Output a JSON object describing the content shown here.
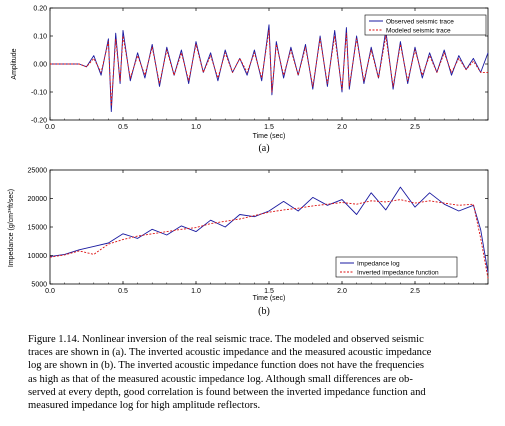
{
  "panel_labels": [
    "(a)",
    "(b)"
  ],
  "caption_lines": [
    "Figure 1.14.  Nonlinear inversion of the real seismic trace.  The modeled and observed seismic",
    "traces are shown in (a).  The inverted acoustic impedance and the measured acoustic impedance",
    "log are shown in (b).  The inverted acoustic impedance function does not have the frequencies",
    "as high as that of the measured acoustic impedance log.  Although small differences are ob-",
    "served at every depth, good correlation is found between the inverted impedance function and",
    "measured impedance log for high amplitude reflectors."
  ],
  "chart_data": [
    {
      "type": "line",
      "xlabel": "Time (sec)",
      "ylabel": "Amplitude",
      "xlim": [
        0.0,
        3.0
      ],
      "ylim": [
        -0.2,
        0.2
      ],
      "xticks": [
        "0.0",
        "0.5",
        "1.0",
        "1.5",
        "2.0",
        "2.5"
      ],
      "yticks": [
        "-0.20",
        "-0.10",
        "0.00",
        "0.10",
        "0.20"
      ],
      "legend_position": "top-right",
      "series": [
        {
          "name": "Observed seismic trace",
          "color": "#1a1aa0",
          "style": "solid",
          "x": [
            0.0,
            0.2,
            0.25,
            0.3,
            0.35,
            0.4,
            0.42,
            0.45,
            0.48,
            0.5,
            0.55,
            0.6,
            0.65,
            0.7,
            0.75,
            0.8,
            0.85,
            0.9,
            0.95,
            1.0,
            1.05,
            1.1,
            1.15,
            1.2,
            1.25,
            1.3,
            1.35,
            1.4,
            1.45,
            1.5,
            1.52,
            1.55,
            1.6,
            1.65,
            1.7,
            1.75,
            1.8,
            1.85,
            1.9,
            1.95,
            2.0,
            2.03,
            2.05,
            2.1,
            2.15,
            2.2,
            2.25,
            2.3,
            2.35,
            2.4,
            2.45,
            2.5,
            2.55,
            2.6,
            2.65,
            2.7,
            2.75,
            2.8,
            2.85,
            2.9,
            2.95,
            3.0
          ],
          "y": [
            0.0,
            0.0,
            -0.01,
            0.03,
            -0.04,
            0.09,
            -0.17,
            0.11,
            -0.07,
            0.12,
            -0.06,
            0.04,
            -0.05,
            0.07,
            -0.08,
            0.06,
            -0.04,
            0.05,
            -0.07,
            0.08,
            -0.03,
            0.04,
            -0.06,
            0.05,
            -0.03,
            0.02,
            -0.04,
            0.05,
            -0.06,
            0.14,
            -0.11,
            0.08,
            -0.05,
            0.06,
            -0.04,
            0.07,
            -0.09,
            0.1,
            -0.08,
            0.12,
            -0.1,
            0.13,
            -0.09,
            0.1,
            -0.07,
            0.06,
            -0.05,
            0.12,
            -0.09,
            0.08,
            -0.07,
            0.06,
            -0.05,
            0.04,
            -0.03,
            0.05,
            -0.04,
            0.03,
            -0.02,
            0.02,
            -0.03,
            0.04
          ]
        },
        {
          "name": "Modeled seismic trace",
          "color": "#dd1111",
          "style": "dashed",
          "x": [
            0.0,
            0.2,
            0.25,
            0.3,
            0.35,
            0.4,
            0.42,
            0.45,
            0.48,
            0.5,
            0.55,
            0.6,
            0.65,
            0.7,
            0.75,
            0.8,
            0.85,
            0.9,
            0.95,
            1.0,
            1.05,
            1.1,
            1.15,
            1.2,
            1.25,
            1.3,
            1.35,
            1.4,
            1.45,
            1.5,
            1.52,
            1.55,
            1.6,
            1.65,
            1.7,
            1.75,
            1.8,
            1.85,
            1.9,
            1.95,
            2.0,
            2.03,
            2.05,
            2.1,
            2.15,
            2.2,
            2.25,
            2.3,
            2.35,
            2.4,
            2.45,
            2.5,
            2.55,
            2.6,
            2.65,
            2.7,
            2.75,
            2.8,
            2.85,
            2.9,
            2.95,
            3.0
          ],
          "y": [
            0.0,
            0.0,
            -0.01,
            0.02,
            -0.03,
            0.08,
            -0.15,
            0.09,
            -0.06,
            0.1,
            -0.05,
            0.03,
            -0.04,
            0.06,
            -0.07,
            0.05,
            -0.04,
            0.04,
            -0.06,
            0.07,
            -0.03,
            0.03,
            -0.05,
            0.04,
            -0.03,
            0.02,
            -0.03,
            0.04,
            -0.05,
            0.12,
            -0.1,
            0.07,
            -0.04,
            0.05,
            -0.04,
            0.06,
            -0.08,
            0.09,
            -0.07,
            0.1,
            -0.09,
            0.11,
            -0.08,
            0.09,
            -0.06,
            0.05,
            -0.05,
            0.1,
            -0.08,
            0.07,
            -0.06,
            0.05,
            -0.04,
            0.03,
            -0.03,
            0.04,
            -0.03,
            0.02,
            -0.02,
            0.01,
            -0.03,
            -0.03
          ]
        }
      ]
    },
    {
      "type": "line",
      "xlabel": "Time (sec)",
      "ylabel": "Impedance (g/cm³*ft/sec)",
      "xlim": [
        0.0,
        3.0
      ],
      "ylim": [
        5000,
        25000
      ],
      "xticks": [
        "0.0",
        "0.5",
        "1.0",
        "1.5",
        "2.0",
        "2.5"
      ],
      "yticks": [
        "5000",
        "10000",
        "15000",
        "20000",
        "25000"
      ],
      "legend_position": "bottom-right",
      "series": [
        {
          "name": "Impedance log",
          "color": "#1a1aa0",
          "style": "solid",
          "x": [
            0.0,
            0.1,
            0.2,
            0.3,
            0.4,
            0.5,
            0.6,
            0.7,
            0.8,
            0.9,
            1.0,
            1.1,
            1.2,
            1.3,
            1.4,
            1.5,
            1.6,
            1.7,
            1.8,
            1.9,
            2.0,
            2.1,
            2.2,
            2.3,
            2.4,
            2.5,
            2.6,
            2.7,
            2.8,
            2.9,
            2.95,
            3.0
          ],
          "y": [
            9800,
            10200,
            11000,
            11600,
            12200,
            13800,
            13000,
            14600,
            13600,
            15200,
            14200,
            16200,
            15000,
            17200,
            16800,
            17800,
            19500,
            17800,
            20200,
            18800,
            19800,
            17200,
            21000,
            18000,
            22000,
            18500,
            21000,
            19000,
            17800,
            18800,
            14500,
            7000
          ]
        },
        {
          "name": "Inverted impedance function",
          "color": "#dd1111",
          "style": "dashed",
          "x": [
            0.0,
            0.1,
            0.2,
            0.3,
            0.4,
            0.5,
            0.6,
            0.7,
            0.8,
            0.9,
            1.0,
            1.1,
            1.2,
            1.3,
            1.4,
            1.5,
            1.6,
            1.7,
            1.8,
            1.9,
            2.0,
            2.1,
            2.2,
            2.3,
            2.4,
            2.5,
            2.6,
            2.7,
            2.8,
            2.9,
            2.95,
            3.0
          ],
          "y": [
            9700,
            10100,
            10800,
            10200,
            12000,
            12800,
            13400,
            13800,
            14200,
            14600,
            14900,
            15600,
            16000,
            16400,
            17000,
            17600,
            18000,
            18300,
            18700,
            19000,
            19300,
            19000,
            19600,
            19400,
            19800,
            19200,
            19600,
            19200,
            18800,
            19000,
            13000,
            6000
          ]
        }
      ]
    }
  ]
}
